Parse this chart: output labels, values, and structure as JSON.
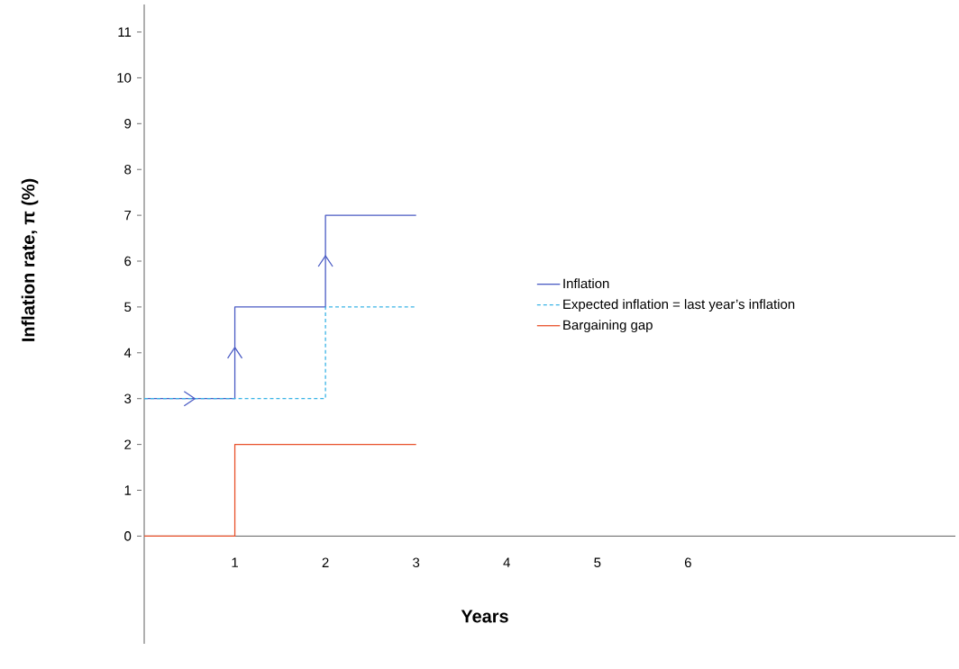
{
  "chart_data": {
    "type": "step",
    "xlabel": "Years",
    "ylabel": "Inflation rate, π (%)",
    "xlim": [
      0,
      8.95
    ],
    "ylim": [
      -2.35,
      11.6
    ],
    "xticks": [
      1,
      2,
      3,
      4,
      5,
      6
    ],
    "yticks": [
      0,
      1,
      2,
      3,
      4,
      5,
      6,
      7,
      8,
      9,
      10,
      11
    ],
    "series": [
      {
        "name": "Inflation",
        "color": "#4a5bc4",
        "x": [
          0,
          1,
          2,
          3
        ],
        "values": [
          3,
          5,
          7,
          7
        ]
      },
      {
        "name": "Expected inflation = last year’s inflation",
        "color": "#3ab4e6",
        "line_style": "dashed",
        "x": [
          0,
          1,
          2,
          3
        ],
        "values": [
          3,
          3,
          5,
          5
        ]
      },
      {
        "name": "Bargaining gap",
        "color": "#e8502a",
        "x": [
          0,
          1,
          2,
          3
        ],
        "values": [
          0,
          2,
          2,
          2
        ]
      }
    ],
    "legend": "right",
    "grid": false,
    "marker": "none"
  }
}
